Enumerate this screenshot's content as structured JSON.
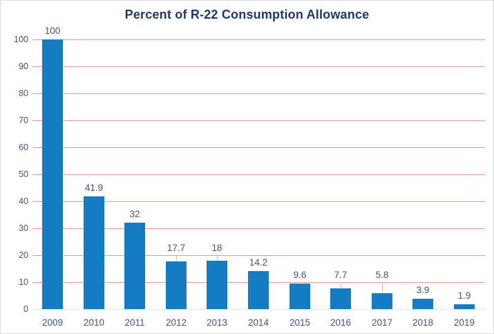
{
  "chart_data": {
    "type": "bar",
    "title": "Percent of R-22 Consumption Allowance",
    "categories": [
      "2009",
      "2010",
      "2011",
      "2012",
      "2013",
      "2014",
      "2015",
      "2016",
      "2017",
      "2018",
      "2019"
    ],
    "values": [
      100,
      41.9,
      32,
      17.7,
      18,
      14.2,
      9.6,
      7.7,
      5.8,
      3.9,
      1.9
    ],
    "data_labels": [
      "100",
      "41.9",
      "32",
      "17.7",
      "18",
      "14.2",
      "9.6",
      "7.7",
      "5.8",
      "3.9",
      "1.9"
    ],
    "ytick_labels": [
      "0",
      "10",
      "20",
      "30",
      "40",
      "50",
      "60",
      "70",
      "80",
      "90",
      "100"
    ],
    "ylim": [
      0,
      100
    ],
    "ytick_step": 10,
    "xlabel": "",
    "ylabel": "",
    "grid": "horizontal",
    "legend": "none",
    "colors": {
      "bar": "#137cc3",
      "gridline": "#e59894",
      "baseline": "#d9d9d9",
      "title": "#1f3864",
      "tick_label": "#44546a",
      "data_label": "#44546a",
      "leader_line": "#bfbfbf",
      "border": "#d9dce4",
      "background": "#ffffff"
    }
  }
}
